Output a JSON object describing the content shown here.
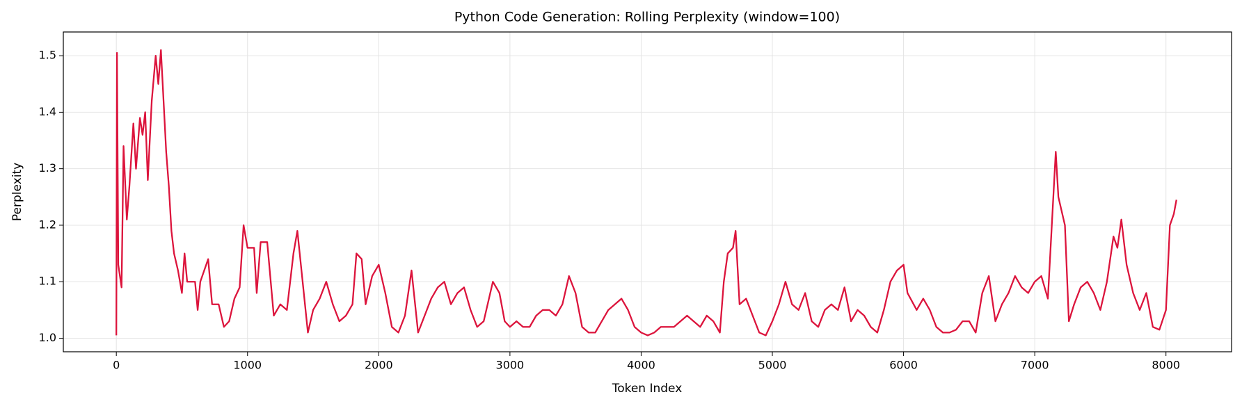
{
  "chart_data": {
    "type": "line",
    "title": "Python Code Generation: Rolling Perplexity (window=100)",
    "x_label": "Token Index",
    "y_label": "Perplexity",
    "x": [
      0,
      5,
      15,
      40,
      55,
      80,
      100,
      130,
      150,
      180,
      200,
      220,
      240,
      270,
      300,
      320,
      340,
      360,
      380,
      400,
      420,
      440,
      470,
      500,
      520,
      540,
      600,
      620,
      640,
      700,
      730,
      780,
      820,
      860,
      900,
      940,
      970,
      1000,
      1050,
      1070,
      1100,
      1150,
      1200,
      1250,
      1300,
      1350,
      1380,
      1420,
      1460,
      1500,
      1550,
      1600,
      1650,
      1700,
      1750,
      1800,
      1830,
      1870,
      1900,
      1950,
      2000,
      2050,
      2100,
      2150,
      2200,
      2250,
      2300,
      2350,
      2400,
      2450,
      2500,
      2550,
      2600,
      2650,
      2700,
      2750,
      2800,
      2870,
      2920,
      2960,
      3000,
      3050,
      3100,
      3150,
      3200,
      3250,
      3300,
      3350,
      3400,
      3450,
      3500,
      3550,
      3600,
      3650,
      3700,
      3750,
      3800,
      3850,
      3900,
      3950,
      4000,
      4050,
      4100,
      4150,
      4200,
      4250,
      4300,
      4350,
      4400,
      4450,
      4500,
      4550,
      4600,
      4630,
      4660,
      4700,
      4720,
      4750,
      4800,
      4850,
      4900,
      4950,
      5000,
      5050,
      5100,
      5150,
      5200,
      5250,
      5300,
      5350,
      5400,
      5450,
      5500,
      5550,
      5600,
      5650,
      5700,
      5750,
      5800,
      5850,
      5900,
      5950,
      6000,
      6030,
      6100,
      6150,
      6200,
      6250,
      6300,
      6350,
      6400,
      6450,
      6500,
      6550,
      6600,
      6650,
      6700,
      6750,
      6800,
      6850,
      6900,
      6950,
      7000,
      7050,
      7100,
      7130,
      7160,
      7180,
      7230,
      7260,
      7300,
      7350,
      7400,
      7450,
      7500,
      7550,
      7600,
      7630,
      7660,
      7700,
      7750,
      7800,
      7850,
      7900,
      7950,
      8000,
      8030,
      8060,
      8080
    ],
    "series": [
      {
        "name": "Perplexity",
        "color": "#dc143c",
        "values": [
          1.005,
          1.505,
          1.13,
          1.09,
          1.34,
          1.21,
          1.27,
          1.38,
          1.3,
          1.39,
          1.36,
          1.4,
          1.28,
          1.42,
          1.5,
          1.45,
          1.51,
          1.42,
          1.33,
          1.27,
          1.19,
          1.15,
          1.12,
          1.08,
          1.15,
          1.1,
          1.1,
          1.05,
          1.1,
          1.14,
          1.06,
          1.06,
          1.02,
          1.03,
          1.07,
          1.09,
          1.2,
          1.16,
          1.16,
          1.08,
          1.17,
          1.17,
          1.04,
          1.06,
          1.05,
          1.15,
          1.19,
          1.1,
          1.01,
          1.05,
          1.07,
          1.1,
          1.06,
          1.03,
          1.04,
          1.06,
          1.15,
          1.14,
          1.06,
          1.11,
          1.13,
          1.08,
          1.02,
          1.01,
          1.04,
          1.12,
          1.01,
          1.04,
          1.07,
          1.09,
          1.1,
          1.06,
          1.08,
          1.09,
          1.05,
          1.02,
          1.03,
          1.1,
          1.08,
          1.03,
          1.02,
          1.03,
          1.02,
          1.02,
          1.04,
          1.05,
          1.05,
          1.04,
          1.06,
          1.11,
          1.08,
          1.02,
          1.01,
          1.01,
          1.03,
          1.05,
          1.06,
          1.07,
          1.05,
          1.02,
          1.01,
          1.005,
          1.01,
          1.02,
          1.02,
          1.02,
          1.03,
          1.04,
          1.03,
          1.02,
          1.04,
          1.03,
          1.01,
          1.1,
          1.15,
          1.16,
          1.19,
          1.06,
          1.07,
          1.04,
          1.01,
          1.005,
          1.03,
          1.06,
          1.1,
          1.06,
          1.05,
          1.08,
          1.03,
          1.02,
          1.05,
          1.06,
          1.05,
          1.09,
          1.03,
          1.05,
          1.04,
          1.02,
          1.01,
          1.05,
          1.1,
          1.12,
          1.13,
          1.08,
          1.05,
          1.07,
          1.05,
          1.02,
          1.01,
          1.01,
          1.015,
          1.03,
          1.03,
          1.01,
          1.08,
          1.11,
          1.03,
          1.06,
          1.08,
          1.11,
          1.09,
          1.08,
          1.1,
          1.11,
          1.07,
          1.2,
          1.33,
          1.25,
          1.2,
          1.03,
          1.06,
          1.09,
          1.1,
          1.08,
          1.05,
          1.1,
          1.18,
          1.16,
          1.21,
          1.13,
          1.08,
          1.05,
          1.08,
          1.02,
          1.015,
          1.05,
          1.2,
          1.22,
          1.245
        ]
      }
    ],
    "xlim": [
      -404,
      8500
    ],
    "ylim": [
      0.976,
      1.542
    ],
    "xticks": [
      0,
      1000,
      2000,
      3000,
      4000,
      5000,
      6000,
      7000,
      8000
    ],
    "yticks": [
      {
        "value": 1,
        "label": "1.0"
      },
      1.1,
      1.2,
      1.3,
      1.4,
      1.5
    ],
    "grid": true
  }
}
